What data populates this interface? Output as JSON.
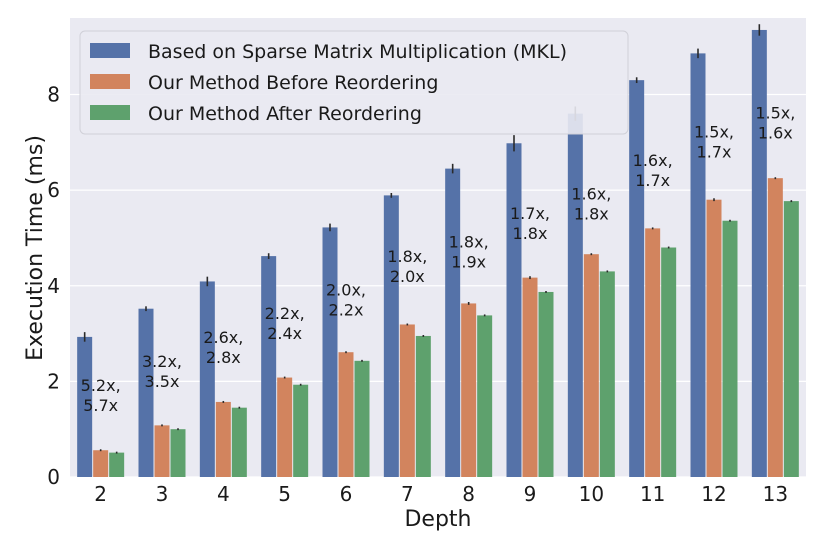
{
  "chart_data": {
    "type": "bar",
    "title": "",
    "xlabel": "Depth",
    "ylabel": "Execution Time (ms)",
    "ylim": [
      0,
      9.6
    ],
    "yticks": [
      0,
      2,
      4,
      6,
      8
    ],
    "grid": "y",
    "categories": [
      "2",
      "3",
      "4",
      "5",
      "6",
      "7",
      "8",
      "9",
      "10",
      "11",
      "12",
      "13"
    ],
    "series": [
      {
        "name": "Based on Sparse Matrix Multiplication (MKL)",
        "color": "#5572a8",
        "values": [
          2.93,
          3.52,
          4.09,
          4.62,
          5.22,
          5.89,
          6.45,
          6.98,
          7.6,
          8.3,
          8.86,
          9.35
        ],
        "errors": [
          0.1,
          0.05,
          0.1,
          0.06,
          0.08,
          0.05,
          0.1,
          0.17,
          0.15,
          0.06,
          0.1,
          0.12
        ]
      },
      {
        "name": "Our Method Before Reordering",
        "color": "#d2845e",
        "values": [
          0.56,
          1.08,
          1.57,
          2.08,
          2.61,
          3.19,
          3.63,
          4.17,
          4.66,
          5.2,
          5.8,
          6.25
        ],
        "errors": [
          0.02,
          0.02,
          0.02,
          0.02,
          0.02,
          0.02,
          0.03,
          0.03,
          0.02,
          0.02,
          0.03,
          0.02
        ]
      },
      {
        "name": "Our Method After Reordering",
        "color": "#5ea16d",
        "values": [
          0.51,
          1.0,
          1.45,
          1.93,
          2.43,
          2.95,
          3.38,
          3.87,
          4.3,
          4.8,
          5.36,
          5.77
        ],
        "errors": [
          0.02,
          0.02,
          0.02,
          0.02,
          0.02,
          0.02,
          0.02,
          0.02,
          0.02,
          0.02,
          0.02,
          0.02
        ]
      }
    ],
    "annotations": [
      {
        "lines": [
          "5.2x,",
          "5.7x"
        ],
        "y": 1.8
      },
      {
        "lines": [
          "3.2x,",
          "3.5x"
        ],
        "y": 2.3
      },
      {
        "lines": [
          "2.6x,",
          "2.8x"
        ],
        "y": 2.8
      },
      {
        "lines": [
          "2.2x,",
          "2.4x"
        ],
        "y": 3.3
      },
      {
        "lines": [
          "2.0x,",
          "2.2x"
        ],
        "y": 3.8
      },
      {
        "lines": [
          "1.8x,",
          "2.0x"
        ],
        "y": 4.5
      },
      {
        "lines": [
          "1.8x,",
          "1.9x"
        ],
        "y": 4.8
      },
      {
        "lines": [
          "1.7x,",
          "1.8x"
        ],
        "y": 5.4
      },
      {
        "lines": [
          "1.6x,",
          "1.8x"
        ],
        "y": 5.8
      },
      {
        "lines": [
          "1.6x,",
          "1.7x"
        ],
        "y": 6.5
      },
      {
        "lines": [
          "1.5x,",
          "1.7x"
        ],
        "y": 7.1
      },
      {
        "lines": [
          "1.5x,",
          "1.6x"
        ],
        "y": 7.5
      }
    ],
    "legend_position": "top-left"
  }
}
